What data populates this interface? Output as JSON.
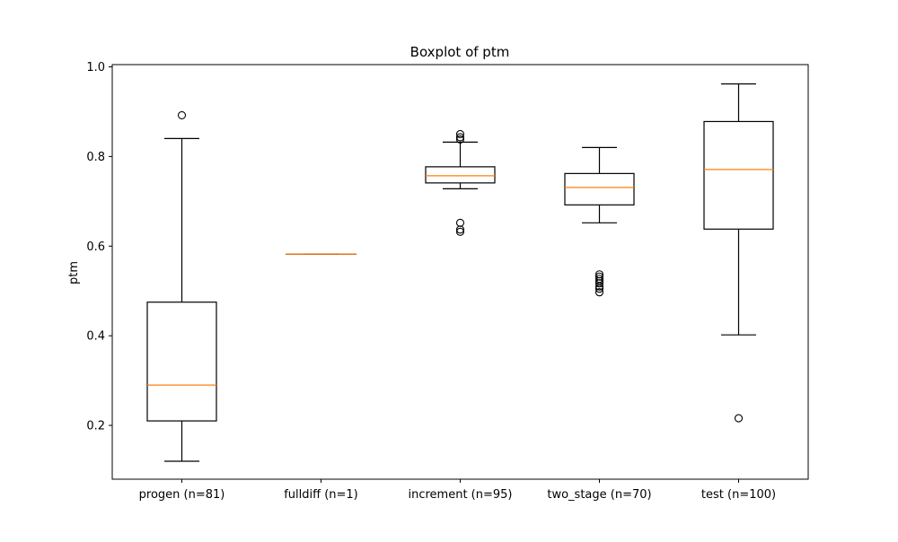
{
  "chart_data": {
    "type": "boxplot",
    "title": "Boxplot of ptm",
    "xlabel": "",
    "ylabel": "ptm",
    "ylim": [
      0.08,
      1.005
    ],
    "yticks": [
      0.2,
      0.4,
      0.6,
      0.8,
      1.0
    ],
    "ytick_labels": [
      "0.2",
      "0.4",
      "0.6",
      "0.8",
      "1.0"
    ],
    "grid": false,
    "colors": {
      "box": "#000000",
      "median": "#ff7f0e",
      "flier": "#000000"
    },
    "categories": [
      "progen (n=81)",
      "fulldiff (n=1)",
      "increment (n=95)",
      "two_stage (n=70)",
      "test (n=100)"
    ],
    "boxes": [
      {
        "label": "progen (n=81)",
        "whisker_low": 0.12,
        "q1": 0.21,
        "median": 0.29,
        "q3": 0.475,
        "whisker_high": 0.84,
        "fliers": [
          0.892
        ]
      },
      {
        "label": "fulldiff (n=1)",
        "whisker_low": 0.582,
        "q1": 0.582,
        "median": 0.582,
        "q3": 0.582,
        "whisker_high": 0.582,
        "fliers": []
      },
      {
        "label": "increment (n=95)",
        "whisker_low": 0.728,
        "q1": 0.741,
        "median": 0.757,
        "q3": 0.777,
        "whisker_high": 0.832,
        "fliers": [
          0.85,
          0.843,
          0.838,
          0.652,
          0.637,
          0.632
        ]
      },
      {
        "label": "two_stage (n=70)",
        "whisker_low": 0.652,
        "q1": 0.692,
        "median": 0.731,
        "q3": 0.762,
        "whisker_high": 0.82,
        "fliers": [
          0.537,
          0.532,
          0.527,
          0.522,
          0.517,
          0.51,
          0.505,
          0.497
        ]
      },
      {
        "label": "test (n=100)",
        "whisker_low": 0.402,
        "q1": 0.638,
        "median": 0.771,
        "q3": 0.878,
        "whisker_high": 0.962,
        "fliers": [
          0.216
        ]
      }
    ]
  }
}
